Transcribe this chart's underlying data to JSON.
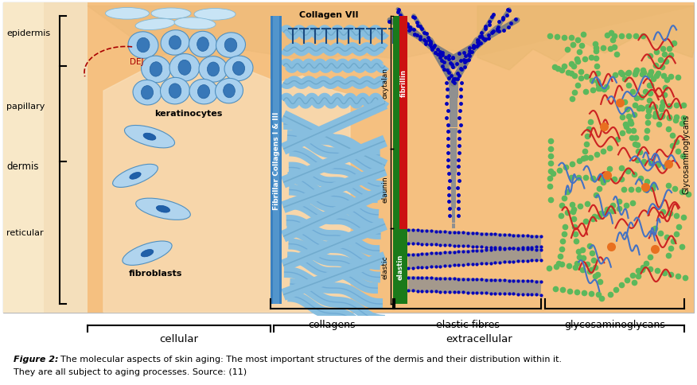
{
  "bg_orange": "#F5C080",
  "bg_left_light": "#F8E8C8",
  "bg_left_strip": "#F0D4A0",
  "white_bg": "#FFFFFF",
  "caption_fig2": "Figure 2:",
  "caption_rest": " The molecular aspects of skin aging: The most important structures of the dermis and their distribution within it.",
  "caption_line2": "They are all subject to aging processes. Source: (11)",
  "col_bar_color": "#4A90D0",
  "col_bar_dark": "#2060A0",
  "col_fibril_color": "#87BEDF",
  "col_fibril_dark": "#4A8AB0",
  "green_bar": "#1A7A1A",
  "red_bar": "#CC1111",
  "elastin_bar": "#1A7A1A",
  "blue_dot": "#0000CC",
  "gray_fiber": "#909090",
  "green_gag": "#5CB85C",
  "red_gag": "#CC2222",
  "blue_gag": "#4472C4",
  "orange_gag": "#E87020",
  "hill_color": "#E8B870",
  "sandy_color": "#EAC080"
}
